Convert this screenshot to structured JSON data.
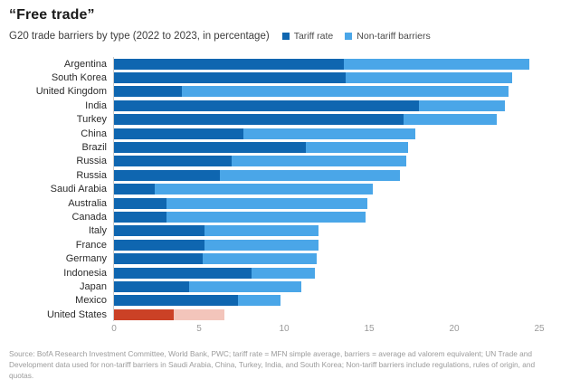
{
  "header": {
    "title": "“Free trade”",
    "subtitle": "G20 trade barriers by type (2022 to 2023, in percentage)"
  },
  "legend": [
    {
      "label": "Tariff rate",
      "color": "#0f66b0"
    },
    {
      "label": "Non-tariff barriers",
      "color": "#4aa6e8"
    }
  ],
  "chart_data": {
    "type": "bar",
    "orientation": "horizontal",
    "stacked": true,
    "title": "“Free trade”",
    "subtitle": "G20 trade barriers by type (2022 to 2023, in percentage)",
    "xlabel": "",
    "ylabel": "",
    "xlim": [
      0,
      25
    ],
    "x_ticks": [
      0,
      5,
      10,
      15,
      20,
      25
    ],
    "grid": false,
    "legend_position": "top-right",
    "categories": [
      "Argentina",
      "South Korea",
      "United Kingdom",
      "India",
      "Turkey",
      "China",
      "Brazil",
      "Russia",
      "Russia",
      "Saudi Arabia",
      "Australia",
      "Canada",
      "Italy",
      "France",
      "Germany",
      "Indonesia",
      "Japan",
      "Mexico",
      "United States"
    ],
    "series": [
      {
        "name": "Tariff rate",
        "values": [
          13.5,
          13.6,
          4.0,
          17.9,
          17.0,
          7.6,
          11.3,
          6.9,
          6.2,
          2.4,
          3.1,
          3.1,
          5.3,
          5.3,
          5.2,
          8.1,
          4.4,
          7.3,
          3.5
        ]
      },
      {
        "name": "Non-tariff barriers",
        "values": [
          10.9,
          9.8,
          19.2,
          5.1,
          5.5,
          10.1,
          6.0,
          10.3,
          10.6,
          12.8,
          11.8,
          11.7,
          6.7,
          6.7,
          6.7,
          3.7,
          6.6,
          2.5,
          3.0
        ]
      }
    ],
    "highlight_category": "United States",
    "colors": {
      "tariff": "#0f66b0",
      "non_tariff": "#4aa6e8",
      "tariff_highlight": "#cb4126",
      "non_tariff_highlight": "#f3c5bb",
      "axis_line": "#cccccc",
      "tick_text": "#9a9a9a"
    }
  },
  "source": {
    "text": "Source: BofA Research Investment Committee, World Bank, PWC; tariff rate = MFN simple average, barriers = average ad valorem equivalent; UN Trade and Development data used for non-tariff barriers in Saudi Arabia, China, Turkey, India, and South Korea; Non-tariff barriers include regulations, rules of origin, and quotas."
  }
}
